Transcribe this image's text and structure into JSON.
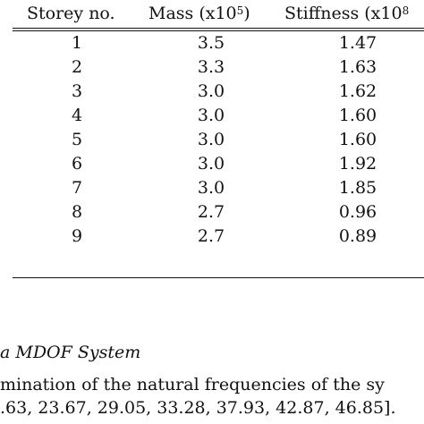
{
  "table": {
    "headers": {
      "storey": "Storey no.",
      "mass_base": "Mass (x10",
      "mass_exp": "5",
      "mass_close": ")",
      "stiffness_base": "Stiffness (x10",
      "stiffness_exp": "8"
    },
    "rows": [
      {
        "storey": "1",
        "mass": "3.5",
        "stiffness": "1.47"
      },
      {
        "storey": "2",
        "mass": "3.3",
        "stiffness": "1.63"
      },
      {
        "storey": "3",
        "mass": "3.0",
        "stiffness": "1.62"
      },
      {
        "storey": "4",
        "mass": "3.0",
        "stiffness": "1.60"
      },
      {
        "storey": "5",
        "mass": "3.0",
        "stiffness": "1.60"
      },
      {
        "storey": "6",
        "mass": "3.0",
        "stiffness": "1.92"
      },
      {
        "storey": "7",
        "mass": "3.0",
        "stiffness": "1.85"
      },
      {
        "storey": "8",
        "mass": "2.7",
        "stiffness": "0.96"
      },
      {
        "storey": "9",
        "mass": "2.7",
        "stiffness": "0.89"
      }
    ]
  },
  "caption": "a MDOF System",
  "body": {
    "line1": "mination of the natural frequencies of the sy",
    "line2": ".63, 23.67, 29.05, 33.28, 37.93, 42.87, 46.85]."
  }
}
